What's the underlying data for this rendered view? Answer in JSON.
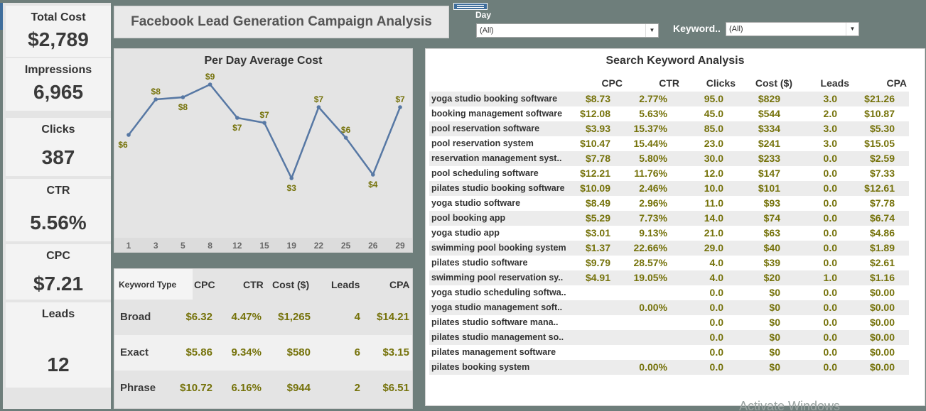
{
  "header": {
    "title": "Facebook Lead Generation Campaign Analysis"
  },
  "controls": {
    "close_glyph": "×",
    "menu_glyph": "▾"
  },
  "kpis": [
    {
      "label": "Total Cost",
      "value": "$2,789"
    },
    {
      "label": "Impressions",
      "value": "6,965"
    },
    {
      "label": "Clicks",
      "value": "387"
    },
    {
      "label": "CTR",
      "value": "5.56%"
    },
    {
      "label": "CPC",
      "value": "$7.21"
    },
    {
      "label": "Leads",
      "value": "12"
    }
  ],
  "filters": {
    "day": {
      "label": "Day",
      "value": "(All)"
    },
    "keyword": {
      "label": "Keyword..",
      "value": "(All)"
    }
  },
  "chart_data": {
    "type": "line",
    "title": "Per Day Average Cost",
    "x": [
      "1",
      "3",
      "5",
      "8",
      "12",
      "15",
      "19",
      "22",
      "25",
      "26",
      "29"
    ],
    "values": [
      6,
      8,
      8,
      9,
      7,
      7,
      3,
      7,
      6,
      4,
      7
    ],
    "data_labels": [
      "$6",
      "$8",
      "$8",
      "$9",
      "$7",
      "$7",
      "$3",
      "$7",
      "$6",
      "$4",
      "$7"
    ],
    "series_color": "#5778a4",
    "label_color": "#75720a",
    "grid": false
  },
  "keyword_type_table": {
    "headers": [
      "Keyword Type",
      "CPC",
      "CTR",
      "Cost ($)",
      "Leads",
      "CPA"
    ],
    "rows": [
      {
        "type": "Broad",
        "cpc": "$6.32",
        "ctr": "4.47%",
        "cost": "$1,265",
        "leads": "4",
        "cpa": "$14.21"
      },
      {
        "type": "Exact",
        "cpc": "$5.86",
        "ctr": "9.34%",
        "cost": "$580",
        "leads": "6",
        "cpa": "$3.15"
      },
      {
        "type": "Phrase",
        "cpc": "$10.72",
        "ctr": "6.16%",
        "cost": "$944",
        "leads": "2",
        "cpa": "$6.51"
      }
    ]
  },
  "search_keyword_table": {
    "title": "Search Keyword Analysis",
    "headers": [
      "CPC",
      "CTR",
      "Clicks",
      "Cost ($)",
      "Leads",
      "CPA"
    ],
    "rows": [
      {
        "kw": "yoga studio booking software",
        "cpc": "$8.73",
        "ctr": "2.77%",
        "clicks": "95.0",
        "cost": "$829",
        "leads": "3.0",
        "cpa": "$21.26"
      },
      {
        "kw": "booking management software",
        "cpc": "$12.08",
        "ctr": "5.63%",
        "clicks": "45.0",
        "cost": "$544",
        "leads": "2.0",
        "cpa": "$10.87"
      },
      {
        "kw": "pool reservation software",
        "cpc": "$3.93",
        "ctr": "15.37%",
        "clicks": "85.0",
        "cost": "$334",
        "leads": "3.0",
        "cpa": "$5.30"
      },
      {
        "kw": "pool reservation system",
        "cpc": "$10.47",
        "ctr": "15.44%",
        "clicks": "23.0",
        "cost": "$241",
        "leads": "3.0",
        "cpa": "$15.05"
      },
      {
        "kw": "reservation management syst..",
        "cpc": "$7.78",
        "ctr": "5.80%",
        "clicks": "30.0",
        "cost": "$233",
        "leads": "0.0",
        "cpa": "$2.59"
      },
      {
        "kw": "pool scheduling software",
        "cpc": "$12.21",
        "ctr": "11.76%",
        "clicks": "12.0",
        "cost": "$147",
        "leads": "0.0",
        "cpa": "$7.33"
      },
      {
        "kw": "pilates studio booking software",
        "cpc": "$10.09",
        "ctr": "2.46%",
        "clicks": "10.0",
        "cost": "$101",
        "leads": "0.0",
        "cpa": "$12.61"
      },
      {
        "kw": "yoga studio software",
        "cpc": "$8.49",
        "ctr": "2.96%",
        "clicks": "11.0",
        "cost": "$93",
        "leads": "0.0",
        "cpa": "$7.78"
      },
      {
        "kw": "pool booking app",
        "cpc": "$5.29",
        "ctr": "7.73%",
        "clicks": "14.0",
        "cost": "$74",
        "leads": "0.0",
        "cpa": "$6.74"
      },
      {
        "kw": "yoga studio app",
        "cpc": "$3.01",
        "ctr": "9.13%",
        "clicks": "21.0",
        "cost": "$63",
        "leads": "0.0",
        "cpa": "$4.86"
      },
      {
        "kw": "swimming pool booking system",
        "cpc": "$1.37",
        "ctr": "22.66%",
        "clicks": "29.0",
        "cost": "$40",
        "leads": "0.0",
        "cpa": "$1.89"
      },
      {
        "kw": "pilates studio software",
        "cpc": "$9.79",
        "ctr": "28.57%",
        "clicks": "4.0",
        "cost": "$39",
        "leads": "0.0",
        "cpa": "$2.61"
      },
      {
        "kw": "swimming pool reservation sy..",
        "cpc": "$4.91",
        "ctr": "19.05%",
        "clicks": "4.0",
        "cost": "$20",
        "leads": "1.0",
        "cpa": "$1.16"
      },
      {
        "kw": "yoga studio scheduling softwa..",
        "cpc": "",
        "ctr": "",
        "clicks": "0.0",
        "cost": "$0",
        "leads": "0.0",
        "cpa": "$0.00"
      },
      {
        "kw": "yoga studio management soft..",
        "cpc": "",
        "ctr": "0.00%",
        "clicks": "0.0",
        "cost": "$0",
        "leads": "0.0",
        "cpa": "$0.00"
      },
      {
        "kw": "pilates studio software mana..",
        "cpc": "",
        "ctr": "",
        "clicks": "0.0",
        "cost": "$0",
        "leads": "0.0",
        "cpa": "$0.00"
      },
      {
        "kw": "pilates studio management so..",
        "cpc": "",
        "ctr": "",
        "clicks": "0.0",
        "cost": "$0",
        "leads": "0.0",
        "cpa": "$0.00"
      },
      {
        "kw": "pilates management software",
        "cpc": "",
        "ctr": "",
        "clicks": "0.0",
        "cost": "$0",
        "leads": "0.0",
        "cpa": "$0.00"
      },
      {
        "kw": "pilates booking system",
        "cpc": "",
        "ctr": "0.00%",
        "clicks": "0.0",
        "cost": "$0",
        "leads": "0.0",
        "cpa": "$0.00"
      }
    ]
  },
  "watermark": "Activate Windows"
}
